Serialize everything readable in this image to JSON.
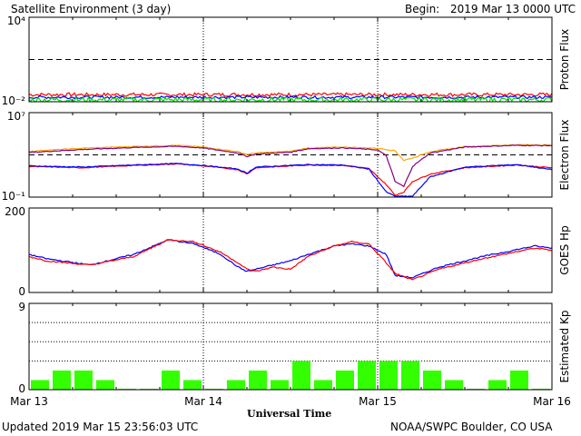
{
  "header": {
    "title": "Satellite Environment (3 day)",
    "begin_label": "Begin:",
    "begin_value": "2019 Mar 13 0000 UTC"
  },
  "footer": {
    "updated": "Updated 2019 Mar 15 23:56:03 UTC",
    "credit": "NOAA/SWPC Boulder, CO USA",
    "xlabel": "Universal Time"
  },
  "chart_data": [
    {
      "type": "line",
      "ylabel": "Proton Flux",
      "yscale": "log",
      "ylim": [
        0.01,
        10000
      ],
      "ticks": [
        "10⁴",
        "10⁻²"
      ],
      "threshold": 10,
      "x_range_days": [
        0,
        3
      ],
      "series": [
        {
          "color": "#ff0000",
          "level": 0.032,
          "noise": 0.25
        },
        {
          "color": "#0000ff",
          "level": 0.021,
          "noise": 0.2
        },
        {
          "color": "#00e000",
          "level": 0.014,
          "noise": 0.35
        }
      ]
    },
    {
      "type": "line",
      "ylabel": "Electron Flux",
      "yscale": "log",
      "ylim": [
        0.1,
        10000000
      ],
      "ticks": [
        "10⁷",
        "10⁻¹"
      ],
      "threshold": 1000,
      "x_range_days": [
        0,
        3
      ],
      "series": [
        {
          "color": "#ffa500",
          "x": [
            0,
            0.3,
            0.6,
            0.85,
            1.0,
            1.2,
            1.25,
            1.3,
            1.5,
            1.6,
            1.8,
            2.0,
            2.1,
            2.15,
            2.2,
            2.3,
            2.5,
            2.8,
            3.0
          ],
          "y": [
            2200,
            4200,
            6200,
            8000,
            5500,
            2000,
            1100,
            1500,
            2200,
            4500,
            5500,
            4200,
            2500,
            300,
            500,
            2000,
            6000,
            9000,
            8500
          ]
        },
        {
          "color": "#800080",
          "x": [
            0,
            0.3,
            0.6,
            0.85,
            1.0,
            1.2,
            1.25,
            1.3,
            1.5,
            1.6,
            1.8,
            2.0,
            2.05,
            2.1,
            2.15,
            2.2,
            2.3,
            2.5,
            2.8,
            3.0
          ],
          "y": [
            1700,
            3200,
            5000,
            6500,
            4500,
            1500,
            700,
            1200,
            1800,
            3800,
            4600,
            3000,
            800,
            3,
            1,
            80,
            1500,
            5500,
            8000,
            7500
          ]
        },
        {
          "color": "#ff0000",
          "x": [
            0,
            0.3,
            0.6,
            0.85,
            1.0,
            1.2,
            1.25,
            1.3,
            1.5,
            1.6,
            1.8,
            1.95,
            2.05,
            2.1,
            2.15,
            2.2,
            2.3,
            2.5,
            2.8,
            3.0
          ],
          "y": [
            80,
            60,
            100,
            140,
            90,
            40,
            15,
            60,
            90,
            110,
            100,
            50,
            1.5,
            0.15,
            0.3,
            3,
            15,
            60,
            110,
            60
          ]
        },
        {
          "color": "#0000ff",
          "x": [
            0,
            0.3,
            0.6,
            0.85,
            1.0,
            1.2,
            1.25,
            1.3,
            1.5,
            1.6,
            1.8,
            1.95,
            2.05,
            2.1,
            2.15,
            2.2,
            2.3,
            2.5,
            2.8,
            3.0
          ],
          "y": [
            90,
            70,
            110,
            150,
            100,
            45,
            18,
            70,
            100,
            120,
            110,
            45,
            0.3,
            0.12,
            0.12,
            0.12,
            8,
            70,
            120,
            40
          ]
        }
      ]
    },
    {
      "type": "line",
      "ylabel": "GOES Hp",
      "yscale": "linear",
      "ylim": [
        0,
        200
      ],
      "ticks": [
        "200",
        "0"
      ],
      "x_range_days": [
        0,
        3
      ],
      "series": [
        {
          "color": "#0000ff",
          "x": [
            0,
            0.1,
            0.35,
            0.6,
            0.8,
            0.95,
            1.1,
            1.2,
            1.25,
            1.3,
            1.4,
            1.5,
            1.6,
            1.75,
            1.85,
            1.95,
            2.05,
            2.1,
            2.2,
            2.35,
            2.6,
            2.9,
            3.0
          ],
          "y": [
            90,
            80,
            65,
            90,
            125,
            115,
            90,
            60,
            50,
            55,
            65,
            75,
            90,
            110,
            115,
            110,
            90,
            40,
            35,
            60,
            85,
            110,
            105
          ]
        },
        {
          "color": "#ff0000",
          "x": [
            0,
            0.1,
            0.35,
            0.6,
            0.8,
            0.95,
            1.1,
            1.2,
            1.25,
            1.3,
            1.4,
            1.5,
            1.6,
            1.75,
            1.85,
            1.95,
            2.05,
            2.1,
            2.2,
            2.35,
            2.6,
            2.9,
            3.0
          ],
          "y": [
            85,
            75,
            65,
            85,
            125,
            120,
            95,
            70,
            55,
            50,
            60,
            55,
            85,
            110,
            120,
            115,
            70,
            45,
            30,
            55,
            80,
            105,
            100
          ]
        }
      ]
    },
    {
      "type": "bar",
      "ylabel": "Estimated Kp",
      "ylim": [
        0,
        9
      ],
      "ticks": [
        "9",
        "0"
      ],
      "bar_color": "#33ff00",
      "categories": [
        "Mar 13",
        "Mar 13",
        "Mar 13",
        "Mar 13",
        "Mar 13",
        "Mar 13",
        "Mar 13",
        "Mar 13",
        "Mar 14",
        "Mar 14",
        "Mar 14",
        "Mar 14",
        "Mar 14",
        "Mar 14",
        "Mar 14",
        "Mar 14",
        "Mar 15",
        "Mar 15",
        "Mar 15",
        "Mar 15",
        "Mar 15",
        "Mar 15",
        "Mar 15",
        "Mar 15"
      ],
      "values": [
        1,
        2,
        2,
        1,
        0.1,
        0.1,
        2,
        1,
        0.1,
        1,
        2,
        1,
        3,
        1,
        2,
        3,
        3,
        3,
        2,
        1,
        0.1,
        1,
        2,
        0.1
      ]
    }
  ],
  "x_ticks": [
    "Mar 13",
    "Mar 14",
    "Mar 15",
    "Mar 16"
  ]
}
